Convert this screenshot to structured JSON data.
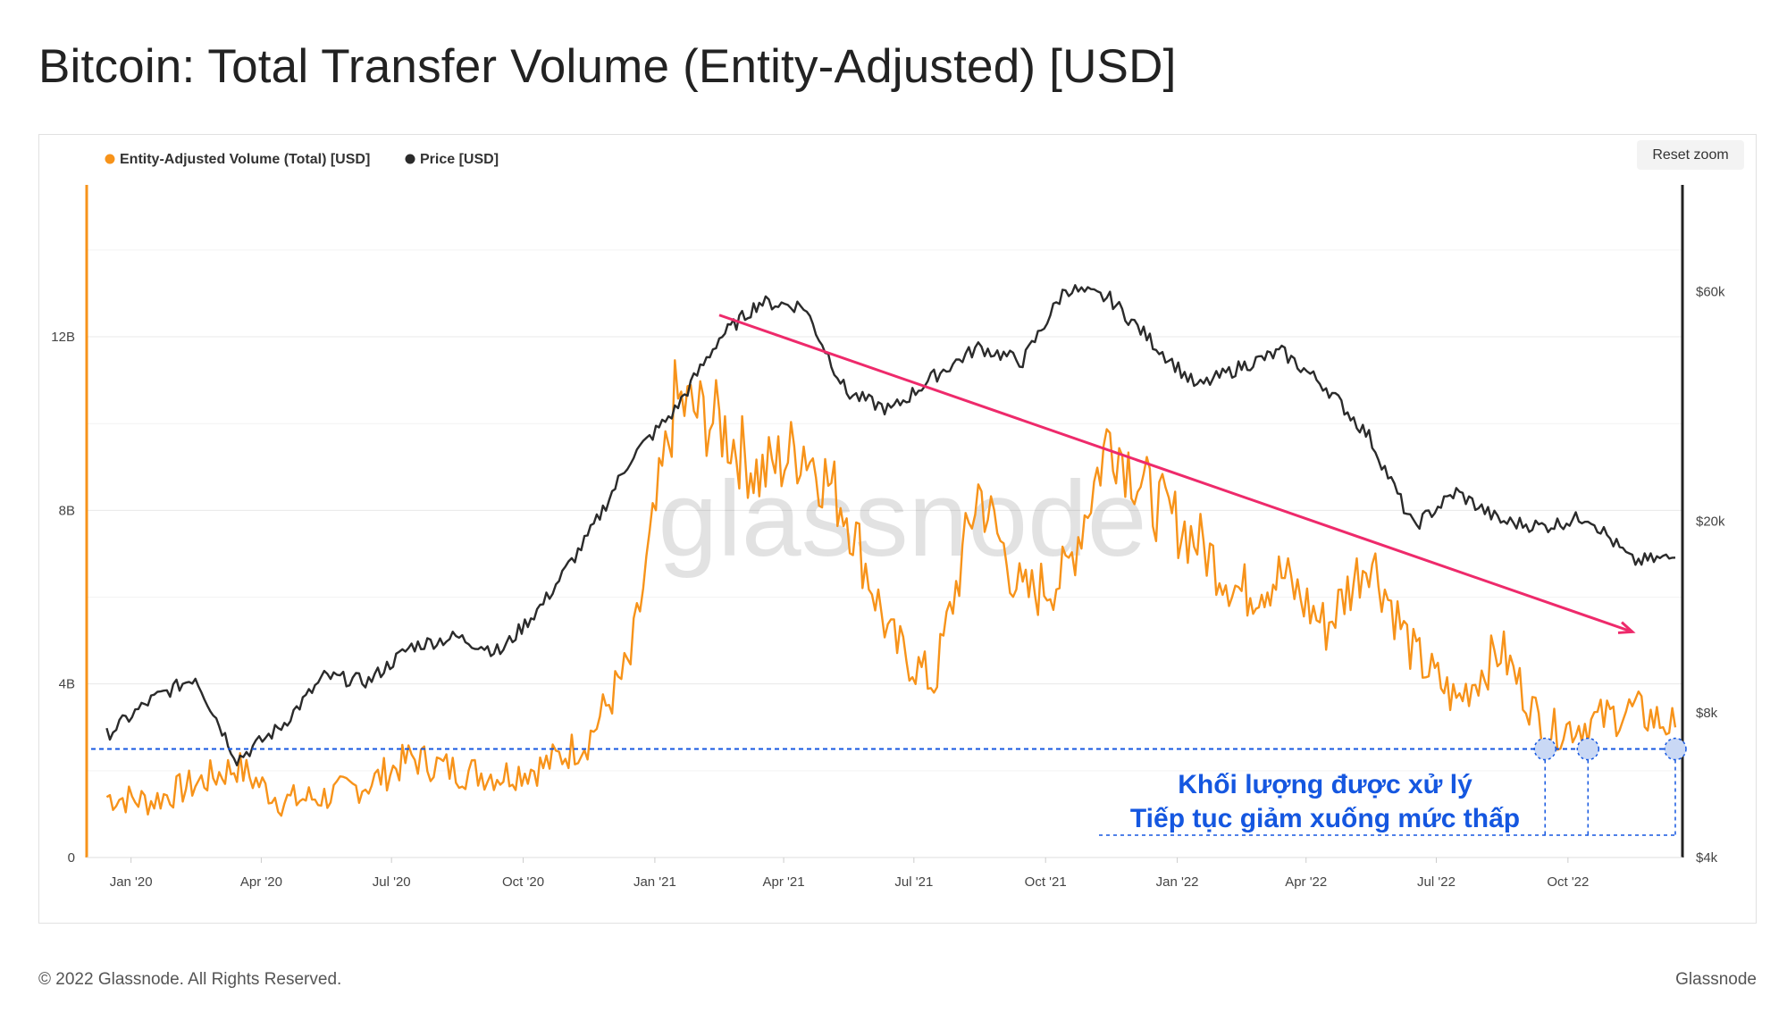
{
  "title": "Bitcoin: Total Transfer Volume (Entity-Adjusted) [USD]",
  "reset_zoom_label": "Reset zoom",
  "watermark": "glassnode",
  "footer": {
    "copyright": "© 2022 Glassnode. All Rights Reserved.",
    "brand": "Glassnode"
  },
  "colors": {
    "volume": "#f7931a",
    "price": "#2b2b2b",
    "trend": "#ee2a6b",
    "support": "#1557e0",
    "annotation": "#1557e0"
  },
  "chart_data": {
    "type": "line",
    "title": "Bitcoin: Total Transfer Volume (Entity-Adjusted) [USD]",
    "legend_placement": "top-left",
    "grid": true,
    "x": [
      "2019-12",
      "2020-01",
      "2020-02",
      "2020-03",
      "2020-04",
      "2020-05",
      "2020-06",
      "2020-07",
      "2020-08",
      "2020-09",
      "2020-10",
      "2020-11",
      "2020-12",
      "2021-01",
      "2021-02",
      "2021-03",
      "2021-04",
      "2021-05",
      "2021-06",
      "2021-07",
      "2021-08",
      "2021-09",
      "2021-10",
      "2021-11",
      "2021-12",
      "2022-01",
      "2022-02",
      "2022-03",
      "2022-04",
      "2022-05",
      "2022-06",
      "2022-07",
      "2022-08",
      "2022-09",
      "2022-10",
      "2022-11",
      "2022-12"
    ],
    "x_tick_labels": [
      "Jan '20",
      "Apr '20",
      "Jul '20",
      "Oct '20",
      "Jan '21",
      "Apr '21",
      "Jul '21",
      "Oct '21",
      "Jan '22",
      "Apr '22",
      "Jul '22",
      "Oct '22"
    ],
    "left_axis": {
      "ticks": [
        "0",
        "4B",
        "8B",
        "12B"
      ],
      "tick_values": [
        0,
        4,
        8,
        12
      ],
      "unit": "billion USD",
      "ylim": [
        0,
        15.5
      ]
    },
    "right_axis": {
      "scale": "log",
      "ticks": [
        "$4k",
        "$8k",
        "$20k",
        "$60k"
      ],
      "tick_values": [
        4000,
        8000,
        20000,
        60000
      ],
      "ylim": [
        4000,
        100000
      ]
    },
    "series": [
      {
        "name": "Entity-Adjusted Volume (Total) [USD]",
        "axis": "left",
        "values": [
          1.4,
          1.3,
          1.7,
          2.1,
          1.3,
          1.4,
          1.7,
          2.3,
          2.0,
          1.9,
          2.1,
          2.7,
          4.5,
          10.5,
          10.0,
          8.8,
          9.5,
          8.0,
          5.0,
          4.0,
          8.5,
          6.0,
          6.5,
          9.8,
          8.2,
          7.3,
          6.1,
          6.5,
          5.3,
          7.0,
          4.7,
          3.6,
          4.8,
          2.9,
          3.1,
          3.4,
          3.0
        ]
      },
      {
        "name": "Price [USD]",
        "axis": "right",
        "values": [
          7200,
          8500,
          9500,
          6400,
          7500,
          9500,
          9300,
          11000,
          11500,
          10700,
          13500,
          18500,
          27000,
          34000,
          48000,
          57000,
          56000,
          37000,
          34000,
          40000,
          46000,
          43000,
          61000,
          58000,
          47000,
          38000,
          42000,
          45000,
          38000,
          30000,
          19500,
          23000,
          20000,
          19500,
          20500,
          16500,
          16800
        ]
      }
    ],
    "annotations": [
      "Khối lượng được xử lý",
      "Tiếp tục giảm xuống mức thấp"
    ],
    "support_level": 2.5,
    "trend_line": {
      "from": [
        "2021-02",
        12.5
      ],
      "to": [
        "2022-11",
        5.2
      ]
    },
    "markers": [
      "2022-09",
      "2022-10",
      "2022-12"
    ]
  }
}
